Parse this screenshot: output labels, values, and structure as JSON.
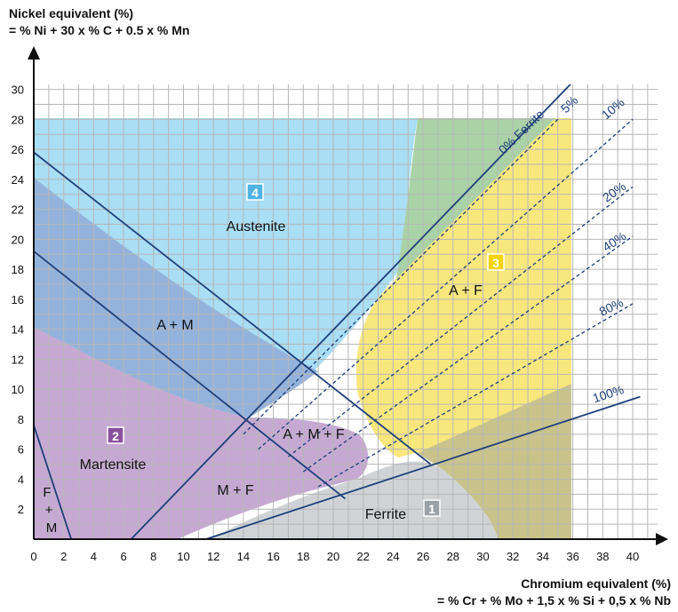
{
  "y_axis": {
    "title_line1": "Nickel equivalent (%)",
    "title_line2": "= % Ni + 30 x % C + 0.5 x % Mn",
    "ticks": [
      2,
      4,
      6,
      8,
      10,
      12,
      14,
      16,
      18,
      20,
      22,
      24,
      26,
      28,
      30
    ]
  },
  "x_axis": {
    "title_line1": "Chromium equivalent (%)",
    "title_line2": "= % Cr + % Mo + 1,5 x % Si + 0,5 x % Nb",
    "ticks": [
      0,
      2,
      4,
      6,
      8,
      10,
      12,
      14,
      16,
      18,
      20,
      22,
      24,
      26,
      28,
      30,
      32,
      34,
      36,
      38,
      40
    ]
  },
  "regions": {
    "austenite": {
      "label": "Austenite",
      "number": "4",
      "color": "#a9def4",
      "badge_color": "#4fb3e3"
    },
    "martensite": {
      "label": "Martensite",
      "number": "2",
      "color": "#c6a9d3",
      "badge_color": "#8a4f9e"
    },
    "ferrite": {
      "label": "Ferrite",
      "number": "1",
      "color": "#cfd3d6",
      "badge_color": "#9aa2a8"
    },
    "a_plus_f": {
      "label": "A + F",
      "number": "3",
      "color": "#f8e77d",
      "badge_color": "#f5d400"
    },
    "a_plus_m": {
      "label": "A + M",
      "color": "#93b3dc"
    },
    "a_plus_m_plus_f": {
      "label": "A + M + F"
    },
    "m_plus_f": {
      "label": "M + F"
    },
    "f_plus_m": {
      "label_line1": "F",
      "label_line2": "+",
      "label_line3": "M"
    },
    "green_overlap_color": "#a9d3a6",
    "olive_overlap_color": "#c9c38b"
  },
  "ferrite_lines": [
    {
      "label": "0% Ferrite",
      "style": "solid",
      "x": [
        6.5,
        36.0
      ],
      "y": [
        0.0,
        30.5
      ]
    },
    {
      "label": "5%",
      "style": "dashed",
      "x": [
        14.0,
        35.0
      ],
      "y": [
        7.0,
        28.0
      ]
    },
    {
      "label": "10%",
      "style": "dashed",
      "x": [
        15.0,
        40.0
      ],
      "y": [
        6.0,
        28.0
      ]
    },
    {
      "label": "20%",
      "style": "dashed",
      "x": [
        17.0,
        40.0
      ],
      "y": [
        5.5,
        23.5
      ]
    },
    {
      "label": "40%",
      "style": "dashed",
      "x": [
        18.0,
        40.0
      ],
      "y": [
        4.5,
        20.2
      ]
    },
    {
      "label": "80%",
      "style": "dashed",
      "x": [
        19.0,
        40.0
      ],
      "y": [
        3.5,
        15.7
      ]
    },
    {
      "label": "100%",
      "style": "solid",
      "x": [
        11.5,
        40.5
      ],
      "y": [
        0.0,
        9.5
      ]
    }
  ],
  "boundary_lines": [
    {
      "x": [
        0,
        26.5
      ],
      "y": [
        25.8,
        5.0
      ]
    },
    {
      "x": [
        0,
        20.8
      ],
      "y": [
        19.2,
        2.7
      ]
    },
    {
      "x": [
        0,
        2.5
      ],
      "y": [
        7.6,
        0
      ]
    }
  ],
  "colors": {
    "line": "#1f3f7a",
    "grid": "#b7b7b7",
    "axis": "#111111"
  }
}
